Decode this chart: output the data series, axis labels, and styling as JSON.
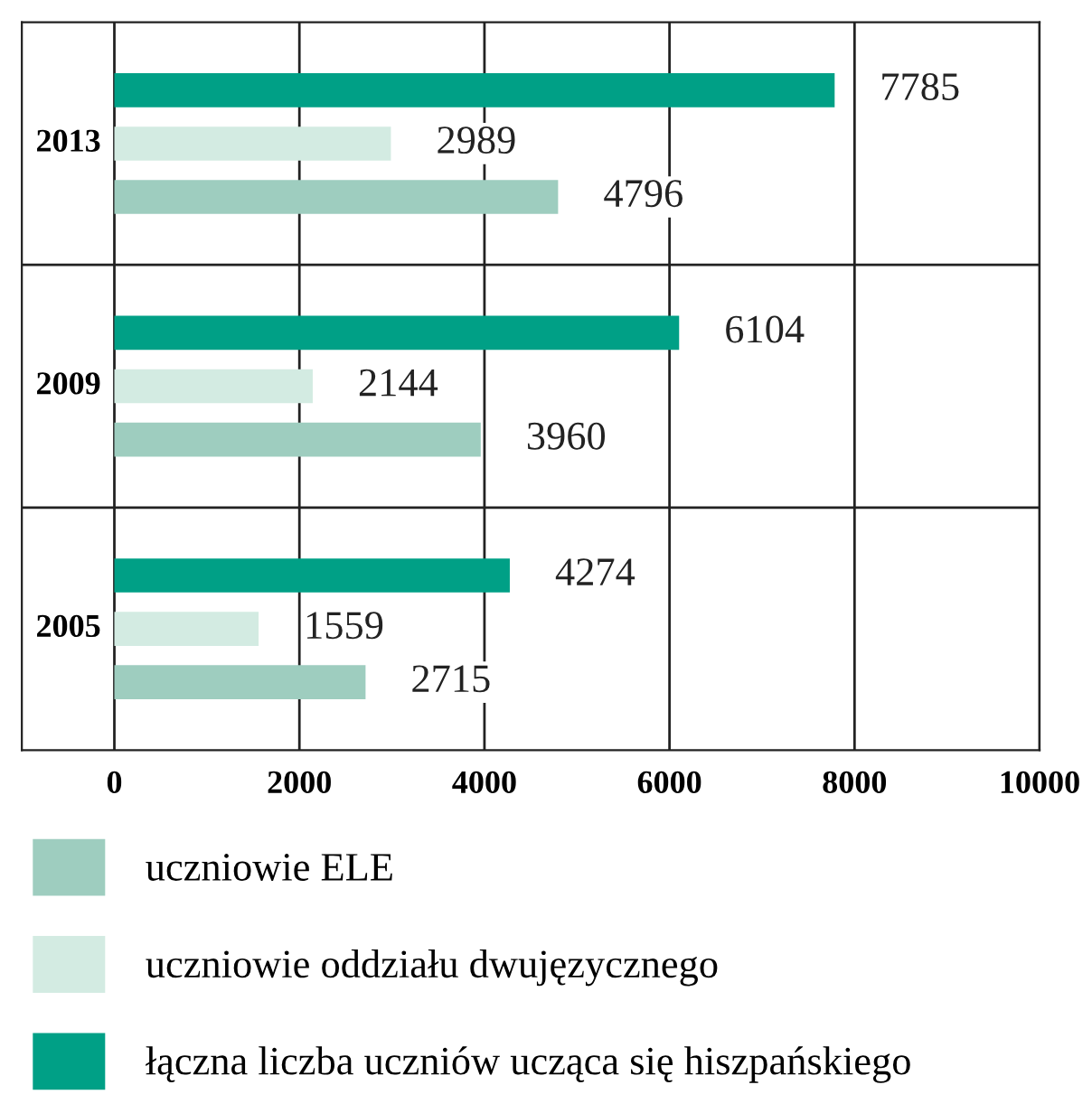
{
  "chart_data": {
    "type": "bar",
    "orientation": "horizontal",
    "categories": [
      "2013",
      "2009",
      "2005"
    ],
    "series": [
      {
        "name": "uczniowie ELE",
        "color": "#9ecdbf",
        "values": [
          4796,
          3960,
          2715
        ]
      },
      {
        "name": "uczniowie oddziału dwujęzycznego",
        "color": "#d3ebe2",
        "values": [
          2989,
          2144,
          1559
        ]
      },
      {
        "name": "łączna liczba uczniów ucząca się hiszpańskiego",
        "color": "#00a086",
        "values": [
          7785,
          6104,
          4274
        ]
      }
    ],
    "xlim": [
      -1000,
      10000
    ],
    "xticks": [
      0,
      2000,
      4000,
      6000,
      8000,
      10000
    ],
    "grid": true,
    "data_labels": true,
    "legend": "bottom"
  }
}
